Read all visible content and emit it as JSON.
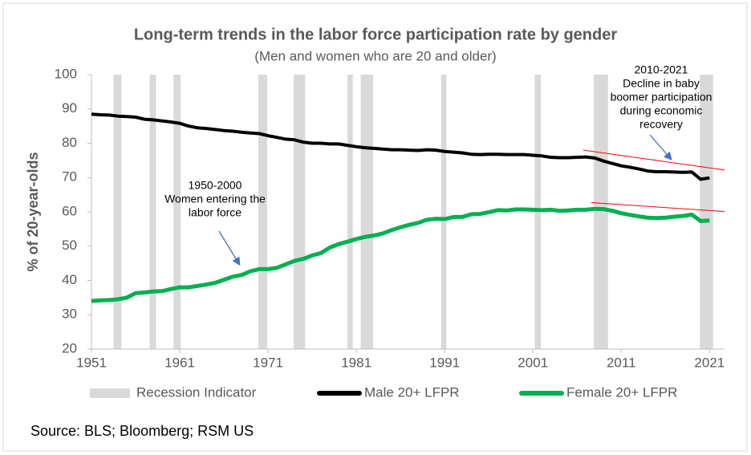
{
  "chart_data": {
    "type": "line",
    "title": "Long-term trends in the labor force participation rate by gender",
    "subtitle": "(Men and women who are 20 and older)",
    "y_label": "% of 20-year-olds",
    "source": "Source: BLS; Bloomberg; RSM US",
    "xlim": [
      1951,
      2022.7
    ],
    "xticks": [
      1951,
      1961,
      1971,
      1981,
      1991,
      2001,
      2011,
      2021
    ],
    "ylim": [
      20,
      100
    ],
    "yticks": [
      20,
      30,
      40,
      50,
      60,
      70,
      80,
      90,
      100
    ],
    "x": [
      1951,
      1952,
      1953,
      1954,
      1955,
      1956,
      1957,
      1958,
      1959,
      1960,
      1961,
      1962,
      1963,
      1964,
      1965,
      1966,
      1967,
      1968,
      1969,
      1970,
      1971,
      1972,
      1973,
      1974,
      1975,
      1976,
      1977,
      1978,
      1979,
      1980,
      1981,
      1982,
      1983,
      1984,
      1985,
      1986,
      1987,
      1988,
      1989,
      1990,
      1991,
      1992,
      1993,
      1994,
      1995,
      1996,
      1997,
      1998,
      1999,
      2000,
      2001,
      2002,
      2003,
      2004,
      2005,
      2006,
      2007,
      2008,
      2009,
      2010,
      2011,
      2012,
      2013,
      2014,
      2015,
      2016,
      2017,
      2018,
      2019,
      2020,
      2021
    ],
    "recession": {
      "name": "Recession Indicator",
      "color": "#d9d9d9",
      "periods": [
        [
          1953.5,
          1954.4
        ],
        [
          1957.6,
          1958.3
        ],
        [
          1960.3,
          1961.1
        ],
        [
          1969.9,
          1970.9
        ],
        [
          1973.9,
          1975.2
        ],
        [
          1980.0,
          1980.6
        ],
        [
          1981.5,
          1982.9
        ],
        [
          1990.6,
          1991.2
        ],
        [
          2001.2,
          2001.9
        ],
        [
          2007.9,
          2009.5
        ],
        [
          2019.9,
          2021.4
        ]
      ]
    },
    "series": [
      {
        "name": "Male 20+ LFPR",
        "color": "#000000",
        "values": [
          88.5,
          88.3,
          88.2,
          87.9,
          87.8,
          87.6,
          87.0,
          86.8,
          86.5,
          86.2,
          85.8,
          85.0,
          84.5,
          84.3,
          84.0,
          83.7,
          83.5,
          83.2,
          83.0,
          82.8,
          82.2,
          81.7,
          81.2,
          81.0,
          80.3,
          80.0,
          80.0,
          79.8,
          79.8,
          79.4,
          79.0,
          78.7,
          78.5,
          78.3,
          78.1,
          78.1,
          78.0,
          77.9,
          78.1,
          78.0,
          77.6,
          77.4,
          77.2,
          76.8,
          76.7,
          76.8,
          76.8,
          76.7,
          76.7,
          76.7,
          76.5,
          76.3,
          75.9,
          75.8,
          75.8,
          75.9,
          76.0,
          75.7,
          74.8,
          74.1,
          73.4,
          73.0,
          72.5,
          71.9,
          71.7,
          71.7,
          71.6,
          71.5,
          71.6,
          69.5,
          69.9
        ]
      },
      {
        "name": "Female 20+ LFPR",
        "color": "#00b050",
        "values": [
          34.0,
          34.2,
          34.3,
          34.5,
          35.0,
          36.3,
          36.5,
          36.8,
          36.9,
          37.5,
          38.0,
          38.0,
          38.4,
          38.8,
          39.3,
          40.2,
          41.1,
          41.6,
          42.7,
          43.3,
          43.3,
          43.7,
          44.7,
          45.7,
          46.3,
          47.3,
          48.0,
          49.6,
          50.6,
          51.3,
          52.1,
          52.7,
          53.1,
          53.7,
          54.7,
          55.5,
          56.2,
          56.8,
          57.7,
          58.0,
          57.9,
          58.5,
          58.5,
          59.3,
          59.4,
          59.9,
          60.5,
          60.4,
          60.7,
          60.7,
          60.6,
          60.5,
          60.6,
          60.3,
          60.4,
          60.6,
          60.6,
          60.9,
          60.8,
          60.3,
          59.6,
          59.1,
          58.7,
          58.3,
          58.2,
          58.3,
          58.6,
          58.8,
          59.2,
          57.3,
          57.5
        ]
      }
    ],
    "trend_lines": [
      {
        "color": "#ff0000",
        "x": [
          2006.7,
          2022.7
        ],
        "y": [
          78.0,
          72.2
        ]
      },
      {
        "color": "#ff0000",
        "x": [
          2007.6,
          2022.7
        ],
        "y": [
          62.7,
          60.1
        ]
      }
    ],
    "annotations": [
      {
        "lines": [
          "1950-2000",
          "Women entering the",
          "labor force"
        ]
      },
      {
        "lines": [
          "2010-2021",
          "Decline in baby",
          "boomer participation",
          "during  economic",
          "recovery"
        ]
      }
    ]
  }
}
